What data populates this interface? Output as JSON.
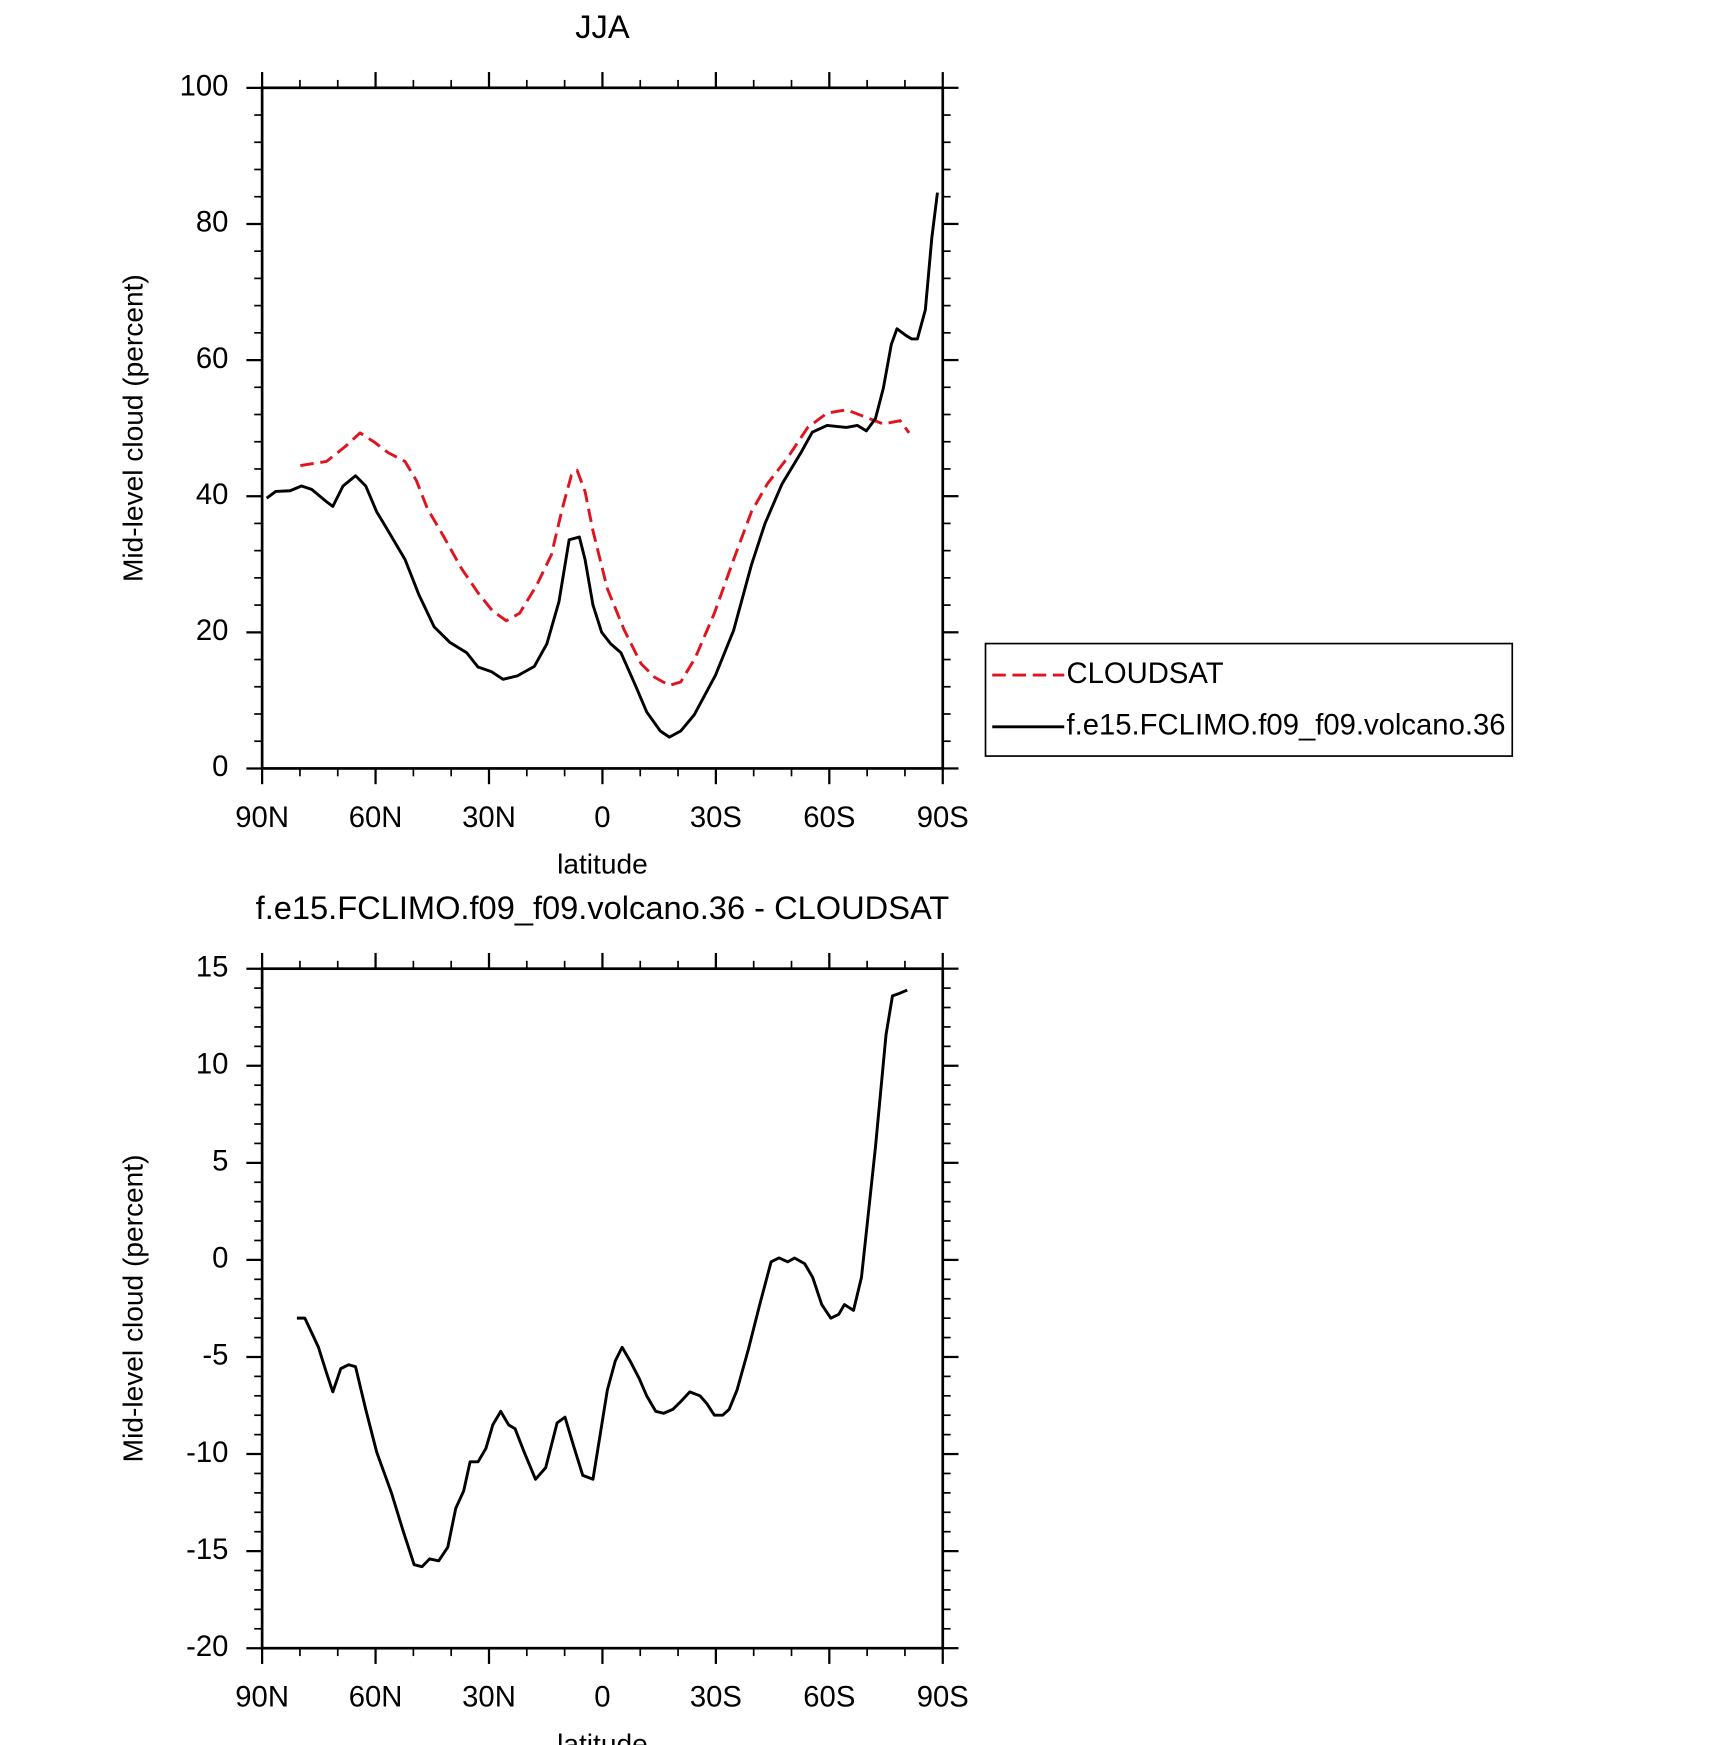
{
  "chart_data": [
    {
      "type": "line",
      "title": "JJA",
      "x_label": "latitude",
      "y_label": "Mid-level cloud (percent)",
      "xlim": [
        90,
        -90
      ],
      "xticks": [
        {
          "value": 90,
          "label": "90N"
        },
        {
          "value": 60,
          "label": "60N"
        },
        {
          "value": 30,
          "label": "30N"
        },
        0,
        {
          "value": -30,
          "label": "30S"
        },
        {
          "value": -60,
          "label": "60S"
        },
        {
          "value": -90,
          "label": "90S"
        }
      ],
      "ylim": [
        0,
        100
      ],
      "yticks": [
        0,
        20,
        40,
        60,
        80,
        100
      ],
      "legend": "right",
      "series": [
        {
          "name": "CLOUDSAT",
          "color": "#e0141e",
          "style": "dashed",
          "x": [
            79.9,
            73.0,
            68.0,
            64.1,
            60.2,
            56.7,
            52.2,
            49.2,
            46.3,
            41.8,
            37.3,
            32.9,
            29.0,
            25.4,
            21.9,
            17.4,
            13.5,
            10.6,
            8.2,
            6.7,
            4.6,
            2.5,
            -1.3,
            -5.8,
            -10.2,
            -13.8,
            -17.7,
            -20.7,
            -24.5,
            -29.6,
            -34.7,
            -39.4,
            -43.6,
            -48.9,
            -54.3,
            -59.4,
            -64.5,
            -69.2,
            -74.3,
            -78.7,
            -81.1
          ],
          "values": [
            44.5,
            45.1,
            47.3,
            49.3,
            47.9,
            46.4,
            45.1,
            42.3,
            38.2,
            33.9,
            29.4,
            25.8,
            23.1,
            21.7,
            22.8,
            26.9,
            31.4,
            38.2,
            43.1,
            43.8,
            40.7,
            34.9,
            26.4,
            20.3,
            15.4,
            13.4,
            12.2,
            12.7,
            16.2,
            22.8,
            30.7,
            37.7,
            41.8,
            45.6,
            50.1,
            52.2,
            52.7,
            51.7,
            50.6,
            51.1,
            49.3
          ]
        },
        {
          "name": "f.e15.FCLIMO.f09_f09.volcano.36",
          "color": "#000000",
          "style": "solid",
          "x": [
            88.8,
            86.4,
            82.6,
            79.6,
            76.9,
            73.0,
            71.3,
            68.6,
            65.3,
            62.6,
            59.7,
            57.3,
            52.2,
            48.6,
            44.5,
            40.3,
            35.9,
            32.9,
            29.3,
            26.3,
            22.5,
            18.0,
            14.7,
            11.5,
            8.8,
            6.1,
            4.6,
            2.5,
            0.2,
            -2.2,
            -4.9,
            -8.8,
            -11.7,
            -15.3,
            -17.7,
            -20.7,
            -24.3,
            -29.9,
            -34.7,
            -39.4,
            -43.0,
            -47.5,
            -52.5,
            -55.5,
            -59.4,
            -64.5,
            -67.4,
            -69.8,
            -72.2,
            -74.3,
            -76.4,
            -77.9,
            -80.3,
            -81.8,
            -83.3,
            -85.4,
            -87.1,
            -88.6
          ],
          "values": [
            39.7,
            40.7,
            40.8,
            41.5,
            41.0,
            39.2,
            38.5,
            41.5,
            43.0,
            41.5,
            37.7,
            35.5,
            30.7,
            25.6,
            20.8,
            18.5,
            17.0,
            14.9,
            14.2,
            13.1,
            13.6,
            15.0,
            18.3,
            24.5,
            33.6,
            34.0,
            30.7,
            24.0,
            20.0,
            18.3,
            17.0,
            12.1,
            8.3,
            5.5,
            4.6,
            5.5,
            7.9,
            13.7,
            20.3,
            29.9,
            36.0,
            41.8,
            46.4,
            49.4,
            50.4,
            50.1,
            50.4,
            49.6,
            51.4,
            55.9,
            62.3,
            64.6,
            63.6,
            63.1,
            63.1,
            67.4,
            77.9,
            84.6
          ]
        }
      ]
    },
    {
      "type": "line",
      "title": "f.e15.FCLIMO.f09_f09.volcano.36 - CLOUDSAT",
      "x_label": "latitude",
      "y_label": "Mid-level cloud (percent)",
      "xlim": [
        90,
        -90
      ],
      "xticks": [
        {
          "value": 90,
          "label": "90N"
        },
        {
          "value": 60,
          "label": "60N"
        },
        {
          "value": 30,
          "label": "30N"
        },
        0,
        {
          "value": -30,
          "label": "30S"
        },
        {
          "value": -60,
          "label": "60S"
        },
        {
          "value": -90,
          "label": "90S"
        }
      ],
      "ylim": [
        -20,
        15
      ],
      "yticks": [
        -20,
        -15,
        -10,
        -5,
        0,
        5,
        10,
        15
      ],
      "series": [
        {
          "color": "#000000",
          "style": "solid",
          "x": [
            80.8,
            78.7,
            75.1,
            73.0,
            71.3,
            69.2,
            67.1,
            65.3,
            62.6,
            59.7,
            55.8,
            52.8,
            49.8,
            47.7,
            45.7,
            43.3,
            40.9,
            38.8,
            36.7,
            35.0,
            32.9,
            30.8,
            29.0,
            26.9,
            24.8,
            23.1,
            20.7,
            17.7,
            15.0,
            12.0,
            9.9,
            7.6,
            5.2,
            2.5,
            -1.3,
            -3.4,
            -5.2,
            -7.3,
            -9.7,
            -11.7,
            -14.1,
            -16.2,
            -18.6,
            -20.7,
            -23.1,
            -25.8,
            -27.6,
            -29.6,
            -31.8,
            -33.5,
            -35.6,
            -38.6,
            -41.6,
            -44.6,
            -46.7,
            -49.0,
            -50.8,
            -53.5,
            -55.6,
            -58.0,
            -60.4,
            -62.5,
            -64.0,
            -66.4,
            -68.5,
            -70.0,
            -72.2,
            -75.0,
            -76.7,
            -78.2,
            -80.6
          ],
          "values": [
            -3.0,
            -3.0,
            -4.5,
            -5.8,
            -6.8,
            -5.6,
            -5.4,
            -5.5,
            -7.7,
            -9.9,
            -12.0,
            -13.9,
            -15.7,
            -15.8,
            -15.4,
            -15.5,
            -14.8,
            -12.8,
            -11.9,
            -10.4,
            -10.4,
            -9.7,
            -8.5,
            -7.8,
            -8.5,
            -8.7,
            -9.9,
            -11.3,
            -10.7,
            -8.4,
            -8.1,
            -9.6,
            -11.1,
            -11.3,
            -6.7,
            -5.2,
            -4.5,
            -5.2,
            -6.1,
            -7.0,
            -7.8,
            -7.9,
            -7.7,
            -7.3,
            -6.8,
            -7.0,
            -7.4,
            -8.0,
            -8.0,
            -7.7,
            -6.7,
            -4.6,
            -2.3,
            -0.1,
            0.1,
            -0.1,
            0.1,
            -0.2,
            -0.9,
            -2.3,
            -3.0,
            -2.8,
            -2.3,
            -2.6,
            -0.9,
            1.8,
            5.8,
            11.6,
            13.6,
            13.7,
            13.9
          ]
        }
      ]
    }
  ]
}
